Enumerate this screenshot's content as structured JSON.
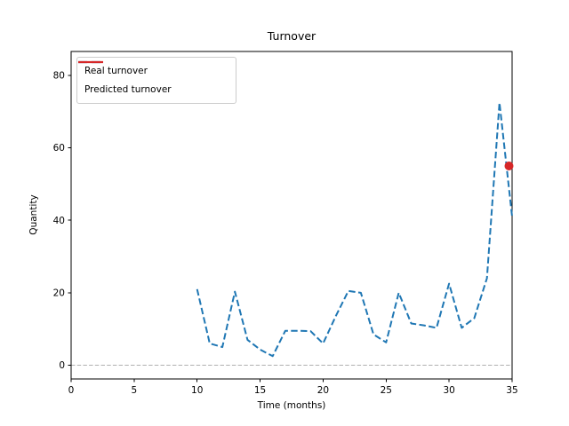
{
  "chart_data": {
    "type": "line",
    "title": "Turnover",
    "xlabel": "Time (months)",
    "ylabel": "Quantity",
    "xlim": [
      0,
      35
    ],
    "ylim": [
      -3.8,
      86.6
    ],
    "xticks": [
      0,
      5,
      10,
      15,
      20,
      25,
      30,
      35
    ],
    "yticks": [
      0,
      20,
      40,
      60,
      80
    ],
    "grid": false,
    "legend_position": "upper-left",
    "hline": {
      "y": 0,
      "color": "#b0b0b0",
      "style": "dashed"
    },
    "series": [
      {
        "name": "Real turnover",
        "kind": "line",
        "style": "dashed",
        "color": "#1f77b4",
        "x": [
          10,
          11,
          12,
          13,
          14,
          15,
          16,
          17,
          18,
          19,
          20,
          21,
          22,
          23,
          24,
          25,
          26,
          27,
          28,
          29,
          30,
          31,
          32,
          33,
          34,
          35
        ],
        "y": [
          21,
          6,
          5,
          20.3,
          7,
          4.3,
          2.5,
          9.5,
          9.5,
          9.4,
          6,
          13.5,
          20.5,
          20,
          8.5,
          6.3,
          20,
          11.5,
          11,
          10.3,
          22.5,
          10.3,
          13,
          24,
          72.5,
          41
        ]
      },
      {
        "name": "Predicted turnover",
        "kind": "point",
        "style": "solid",
        "color": "#d62728",
        "x": [
          35
        ],
        "y": [
          55
        ]
      }
    ]
  }
}
